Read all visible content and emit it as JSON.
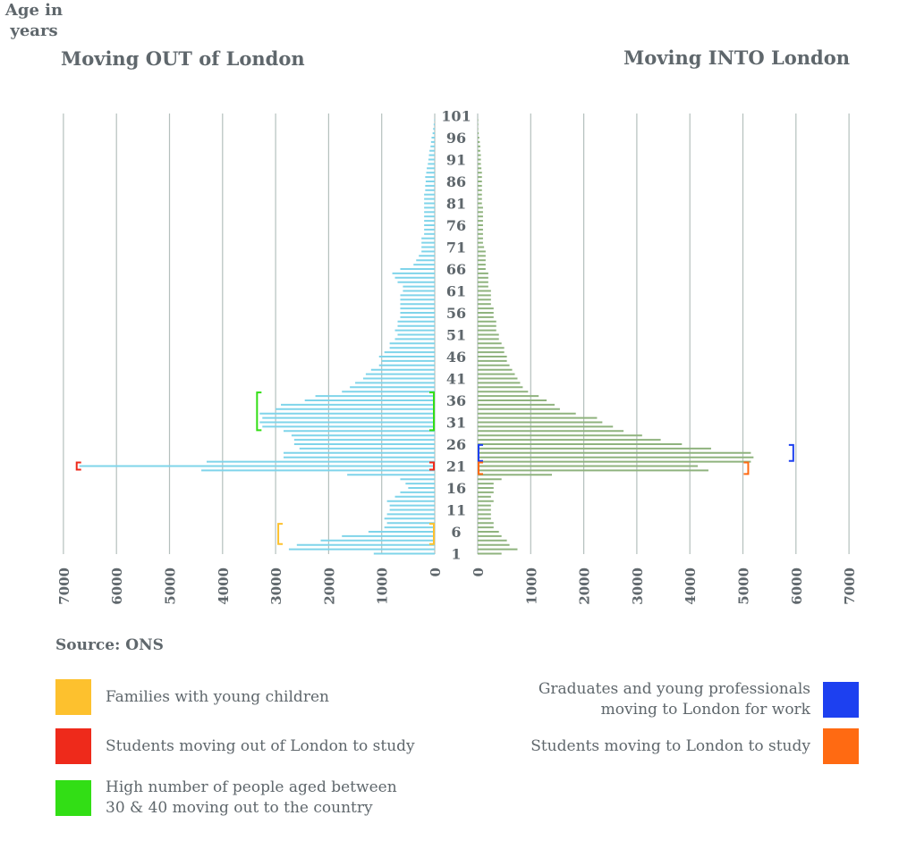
{
  "header": {
    "out_title": "Moving OUT of London",
    "in_title": "Moving INTO London",
    "age_title_line1": "Age in",
    "age_title_line2": "years"
  },
  "source": "Source: ONS",
  "legend": [
    {
      "label_lines": [
        "Families with young children"
      ],
      "color": "#fdc12e",
      "side": "left"
    },
    {
      "label_lines": [
        "Students moving out of London to study"
      ],
      "color": "#ee2a1b",
      "side": "left"
    },
    {
      "label_lines": [
        "High number of people aged between",
        "30 & 40 moving out to the country"
      ],
      "color": "#32de15",
      "side": "left"
    },
    {
      "label_lines": [
        "Graduates and young professionals",
        "moving to London for work"
      ],
      "color": "#1d40f0",
      "side": "right"
    },
    {
      "label_lines": [
        "Students moving to London to study"
      ],
      "color": "#ff6a12",
      "side": "right"
    }
  ],
  "chart_data": {
    "type": "bar",
    "orientation": "horizontal-butterfly",
    "age_tick_labels": [
      "1",
      "6",
      "11",
      "16",
      "21",
      "26",
      "31",
      "36",
      "41",
      "46",
      "51",
      "56",
      "61",
      "66",
      "71",
      "76",
      "81",
      "86",
      "91",
      "96",
      "101"
    ],
    "out_axis_ticks": [
      0,
      1000,
      2000,
      3000,
      4000,
      5000,
      6000,
      7000
    ],
    "in_axis_ticks": [
      0,
      1000,
      2000,
      3000,
      4000,
      5000,
      6000,
      7000
    ],
    "xlim": [
      0,
      7000
    ],
    "grid": true,
    "colors": {
      "out": "#7fd4ea",
      "in": "#8fb37e",
      "grid": "#b4c0bd"
    },
    "series": [
      {
        "name": "Moving OUT of London",
        "ages": [
          1,
          2,
          3,
          4,
          5,
          6,
          7,
          8,
          9,
          10,
          11,
          12,
          13,
          14,
          15,
          16,
          17,
          18,
          19,
          20,
          21,
          22,
          23,
          24,
          25,
          26,
          27,
          28,
          29,
          30,
          31,
          32,
          33,
          34,
          35,
          36,
          37,
          38,
          39,
          40,
          41,
          42,
          43,
          44,
          45,
          46,
          47,
          48,
          49,
          50,
          51,
          52,
          53,
          54,
          55,
          56,
          57,
          58,
          59,
          60,
          61,
          62,
          63,
          64,
          65,
          66,
          67,
          68,
          69,
          70,
          71,
          72,
          73,
          74,
          75,
          76,
          77,
          78,
          79,
          80,
          81,
          82,
          83,
          84,
          85,
          86,
          87,
          88,
          89,
          90,
          91,
          92,
          93,
          94,
          95,
          96,
          97,
          98,
          99,
          100
        ],
        "values": [
          1150,
          2750,
          2600,
          2150,
          1750,
          1250,
          950,
          900,
          950,
          900,
          850,
          850,
          900,
          750,
          650,
          500,
          550,
          650,
          1650,
          4400,
          6700,
          4300,
          2850,
          2850,
          2550,
          2650,
          2650,
          2700,
          2850,
          3250,
          3300,
          3250,
          3300,
          3000,
          2900,
          2450,
          2250,
          1750,
          1600,
          1500,
          1350,
          1300,
          1200,
          1050,
          1000,
          1050,
          950,
          850,
          850,
          750,
          700,
          750,
          700,
          700,
          650,
          650,
          650,
          650,
          650,
          650,
          600,
          600,
          700,
          750,
          800,
          650,
          400,
          350,
          300,
          250,
          250,
          250,
          250,
          200,
          200,
          200,
          200,
          200,
          200,
          200,
          200,
          200,
          200,
          180,
          180,
          170,
          180,
          160,
          150,
          130,
          120,
          110,
          100,
          80,
          70,
          60,
          40,
          30,
          20,
          10
        ]
      },
      {
        "name": "Moving INTO London",
        "ages": [
          1,
          2,
          3,
          4,
          5,
          6,
          7,
          8,
          9,
          10,
          11,
          12,
          13,
          14,
          15,
          16,
          17,
          18,
          19,
          20,
          21,
          22,
          23,
          24,
          25,
          26,
          27,
          28,
          29,
          30,
          31,
          32,
          33,
          34,
          35,
          36,
          37,
          38,
          39,
          40,
          41,
          42,
          43,
          44,
          45,
          46,
          47,
          48,
          49,
          50,
          51,
          52,
          53,
          54,
          55,
          56,
          57,
          58,
          59,
          60,
          61,
          62,
          63,
          64,
          65,
          66,
          67,
          68,
          69,
          70,
          71,
          72,
          73,
          74,
          75,
          76,
          77,
          78,
          79,
          80,
          81,
          82,
          83,
          84,
          85,
          86,
          87,
          88,
          89,
          90,
          91,
          92,
          93,
          94,
          95,
          96,
          97,
          98,
          99,
          100
        ],
        "values": [
          450,
          750,
          600,
          550,
          450,
          400,
          300,
          300,
          250,
          250,
          250,
          250,
          300,
          250,
          300,
          300,
          300,
          450,
          1400,
          4350,
          4150,
          5150,
          5200,
          5150,
          4400,
          3850,
          3450,
          3100,
          2750,
          2550,
          2350,
          2250,
          1850,
          1550,
          1450,
          1300,
          1150,
          950,
          850,
          800,
          750,
          700,
          650,
          600,
          550,
          550,
          500,
          500,
          450,
          400,
          400,
          350,
          350,
          350,
          300,
          300,
          300,
          250,
          250,
          250,
          250,
          200,
          200,
          200,
          200,
          150,
          150,
          150,
          150,
          150,
          120,
          100,
          100,
          100,
          100,
          100,
          100,
          100,
          100,
          100,
          80,
          80,
          80,
          80,
          80,
          80,
          80,
          80,
          70,
          60,
          60,
          60,
          50,
          50,
          40,
          30,
          20,
          10,
          10,
          10
        ]
      }
    ],
    "annotations": [
      {
        "label": "Families with young children",
        "side": "out",
        "age_range": [
          4,
          7
        ],
        "value": 2950,
        "color": "#fdc12e"
      },
      {
        "label": "Students moving out of London to study",
        "side": "out",
        "age_range": [
          21,
          21
        ],
        "value": 6750,
        "color": "#ee2a1b"
      },
      {
        "label": "High number of people aged between 30 & 40 moving out to the country",
        "side": "out",
        "age_range": [
          30,
          37
        ],
        "value": 3350,
        "color": "#32de15"
      },
      {
        "label": "Graduates and young professionals moving to London for work",
        "side": "in",
        "age_range": [
          23,
          25
        ],
        "value": 5950,
        "color": "#1d40f0"
      },
      {
        "label": "Students moving to London to study",
        "side": "in",
        "age_range": [
          20,
          21
        ],
        "value": 5100,
        "color": "#ff6a12"
      }
    ]
  }
}
